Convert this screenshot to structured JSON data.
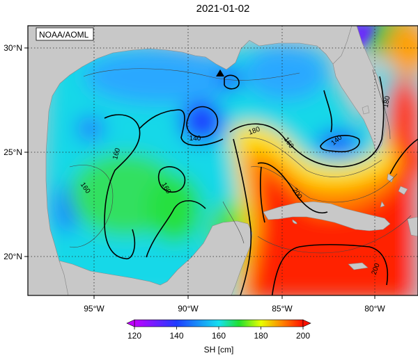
{
  "title": "2021-01-02",
  "credit": "NOAA/AOML",
  "colors": {
    "land": "#c8c8c8",
    "cb_120": "#c000ff",
    "cb_140": "#1e3cff",
    "cb_160": "#14e0f0",
    "cb_170": "#20e030",
    "cb_180": "#e8ff00",
    "cb_190": "#ff8000",
    "cb_200": "#ff1000"
  },
  "axes": {
    "lon_ticks": [
      "95°W",
      "90°W",
      "85°W",
      "80°W"
    ],
    "lat_ticks": [
      "30°N",
      "25°N",
      "20°N"
    ]
  },
  "contour_labels": [
    "140",
    "140",
    "160",
    "160",
    "160",
    "160",
    "180",
    "180",
    "200",
    "200"
  ],
  "colorbar": {
    "label": "SH [cm]",
    "ticks": [
      "120",
      "140",
      "160",
      "180",
      "200"
    ]
  }
}
